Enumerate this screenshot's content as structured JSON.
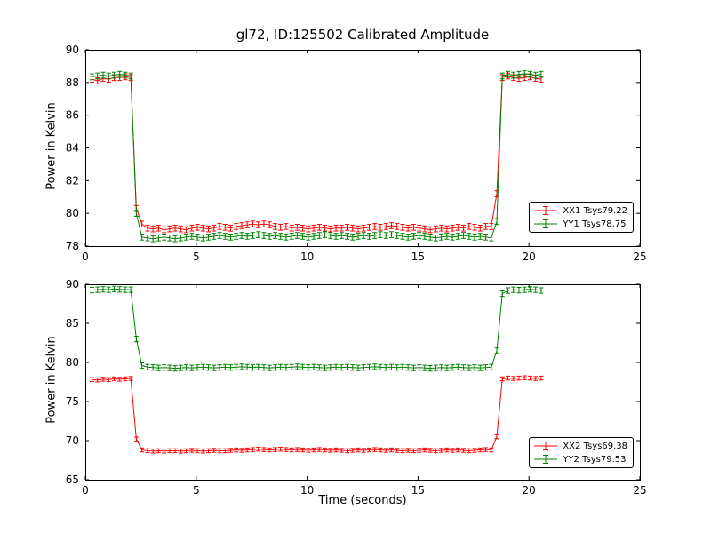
{
  "figure": {
    "title": "gl72, ID:125502 Calibrated Amplitude",
    "background": "#ffffff",
    "text_color": "#000000"
  },
  "chart_data": [
    {
      "type": "line",
      "title": "gl72, ID:125502 Calibrated Amplitude",
      "xlabel": "",
      "ylabel": "Power in Kelvin",
      "xlim": [
        0,
        25
      ],
      "ylim": [
        78,
        90
      ],
      "xticks": [
        0,
        5,
        10,
        15,
        20,
        25
      ],
      "yticks": [
        78,
        80,
        82,
        84,
        86,
        88,
        90
      ],
      "grid": false,
      "legend_position": "lower right",
      "x": [
        0.3,
        0.55,
        0.8,
        1.05,
        1.3,
        1.55,
        1.8,
        2.05,
        2.3,
        2.55,
        2.8,
        3.05,
        3.3,
        3.55,
        3.8,
        4.05,
        4.3,
        4.55,
        4.8,
        5.05,
        5.3,
        5.55,
        5.8,
        6.05,
        6.3,
        6.55,
        6.8,
        7.05,
        7.3,
        7.55,
        7.8,
        8.05,
        8.3,
        8.55,
        8.8,
        9.05,
        9.3,
        9.55,
        9.8,
        10.05,
        10.3,
        10.55,
        10.8,
        11.05,
        11.3,
        11.55,
        11.8,
        12.05,
        12.3,
        12.55,
        12.8,
        13.05,
        13.3,
        13.55,
        13.8,
        14.05,
        14.3,
        14.55,
        14.8,
        15.05,
        15.3,
        15.55,
        15.8,
        16.05,
        16.3,
        16.55,
        16.8,
        17.05,
        17.3,
        17.55,
        17.8,
        18.05,
        18.3,
        18.55,
        18.8,
        19.05,
        19.3,
        19.55,
        19.8,
        20.05,
        20.3,
        20.55
      ],
      "series": [
        {
          "name": "XX1 Tsys79.22",
          "color": "#ff0000",
          "err": 0.18,
          "y": [
            88.2,
            88.1,
            88.25,
            88.2,
            88.3,
            88.3,
            88.35,
            88.3,
            80.3,
            79.35,
            79.1,
            79.05,
            79.1,
            79.0,
            79.05,
            79.1,
            79.05,
            79.0,
            79.1,
            79.15,
            79.1,
            79.05,
            79.1,
            79.2,
            79.15,
            79.1,
            79.2,
            79.25,
            79.3,
            79.35,
            79.3,
            79.35,
            79.3,
            79.2,
            79.15,
            79.2,
            79.1,
            79.15,
            79.1,
            79.05,
            79.1,
            79.15,
            79.1,
            79.05,
            79.1,
            79.1,
            79.15,
            79.1,
            79.05,
            79.1,
            79.15,
            79.2,
            79.15,
            79.2,
            79.25,
            79.2,
            79.15,
            79.1,
            79.15,
            79.1,
            79.05,
            79.0,
            79.05,
            79.1,
            79.05,
            79.1,
            79.15,
            79.1,
            79.2,
            79.15,
            79.1,
            79.2,
            79.2,
            81.2,
            88.3,
            88.4,
            88.3,
            88.25,
            88.3,
            88.35,
            88.25,
            88.2
          ]
        },
        {
          "name": "YY1 Tsys78.75",
          "color": "#008000",
          "err": 0.18,
          "y": [
            88.35,
            88.4,
            88.45,
            88.4,
            88.45,
            88.5,
            88.45,
            88.4,
            80.0,
            78.55,
            78.5,
            78.45,
            78.5,
            78.55,
            78.5,
            78.45,
            78.5,
            78.55,
            78.6,
            78.55,
            78.5,
            78.55,
            78.6,
            78.65,
            78.6,
            78.55,
            78.6,
            78.65,
            78.6,
            78.65,
            78.7,
            78.65,
            78.6,
            78.65,
            78.6,
            78.55,
            78.6,
            78.65,
            78.6,
            78.55,
            78.6,
            78.65,
            78.7,
            78.65,
            78.6,
            78.65,
            78.6,
            78.55,
            78.6,
            78.65,
            78.6,
            78.65,
            78.7,
            78.65,
            78.7,
            78.65,
            78.6,
            78.55,
            78.6,
            78.65,
            78.6,
            78.55,
            78.5,
            78.55,
            78.6,
            78.55,
            78.6,
            78.65,
            78.6,
            78.55,
            78.6,
            78.55,
            78.5,
            79.5,
            88.4,
            88.5,
            88.45,
            88.5,
            88.55,
            88.5,
            88.45,
            88.5
          ]
        }
      ]
    },
    {
      "type": "line",
      "title": "",
      "xlabel": "Time (seconds)",
      "ylabel": "Power in Kelvin",
      "xlim": [
        0,
        25
      ],
      "ylim": [
        65,
        90
      ],
      "xticks": [
        0,
        5,
        10,
        15,
        20,
        25
      ],
      "yticks": [
        65,
        70,
        75,
        80,
        85,
        90
      ],
      "grid": false,
      "legend_position": "lower right",
      "x": [
        0.3,
        0.55,
        0.8,
        1.05,
        1.3,
        1.55,
        1.8,
        2.05,
        2.3,
        2.55,
        2.8,
        3.05,
        3.3,
        3.55,
        3.8,
        4.05,
        4.3,
        4.55,
        4.8,
        5.05,
        5.3,
        5.55,
        5.8,
        6.05,
        6.3,
        6.55,
        6.8,
        7.05,
        7.3,
        7.55,
        7.8,
        8.05,
        8.3,
        8.55,
        8.8,
        9.05,
        9.3,
        9.55,
        9.8,
        10.05,
        10.3,
        10.55,
        10.8,
        11.05,
        11.3,
        11.55,
        11.8,
        12.05,
        12.3,
        12.55,
        12.8,
        13.05,
        13.3,
        13.55,
        13.8,
        14.05,
        14.3,
        14.55,
        14.8,
        15.05,
        15.3,
        15.55,
        15.8,
        16.05,
        16.3,
        16.55,
        16.8,
        17.05,
        17.3,
        17.55,
        17.8,
        18.05,
        18.3,
        18.55,
        18.8,
        19.05,
        19.3,
        19.55,
        19.8,
        20.05,
        20.3,
        20.55
      ],
      "series": [
        {
          "name": "XX2 Tsys69.38",
          "color": "#ff0000",
          "err": 0.25,
          "y": [
            77.8,
            77.75,
            77.85,
            77.8,
            77.9,
            77.85,
            77.9,
            77.95,
            70.2,
            68.8,
            68.7,
            68.65,
            68.7,
            68.65,
            68.7,
            68.7,
            68.65,
            68.7,
            68.75,
            68.7,
            68.65,
            68.7,
            68.75,
            68.7,
            68.7,
            68.75,
            68.8,
            68.75,
            68.8,
            68.85,
            68.9,
            68.85,
            68.8,
            68.85,
            68.9,
            68.85,
            68.8,
            68.85,
            68.8,
            68.75,
            68.8,
            68.85,
            68.8,
            68.75,
            68.8,
            68.75,
            68.7,
            68.75,
            68.8,
            68.75,
            68.8,
            68.85,
            68.8,
            68.75,
            68.8,
            68.75,
            68.7,
            68.75,
            68.7,
            68.75,
            68.8,
            68.75,
            68.7,
            68.75,
            68.8,
            68.75,
            68.8,
            68.75,
            68.7,
            68.75,
            68.8,
            68.85,
            68.8,
            70.5,
            77.9,
            78.0,
            77.95,
            78.0,
            78.05,
            78.0,
            77.95,
            78.0
          ]
        },
        {
          "name": "YY2 Tsys79.53",
          "color": "#008000",
          "err": 0.35,
          "y": [
            89.25,
            89.3,
            89.35,
            89.3,
            89.4,
            89.35,
            89.3,
            89.3,
            83.0,
            79.6,
            79.4,
            79.35,
            79.3,
            79.35,
            79.3,
            79.25,
            79.3,
            79.35,
            79.3,
            79.35,
            79.4,
            79.35,
            79.3,
            79.35,
            79.4,
            79.35,
            79.4,
            79.45,
            79.4,
            79.35,
            79.4,
            79.35,
            79.3,
            79.35,
            79.4,
            79.35,
            79.4,
            79.45,
            79.4,
            79.35,
            79.4,
            79.35,
            79.3,
            79.35,
            79.4,
            79.35,
            79.4,
            79.35,
            79.3,
            79.35,
            79.4,
            79.45,
            79.4,
            79.35,
            79.4,
            79.35,
            79.4,
            79.35,
            79.3,
            79.35,
            79.3,
            79.25,
            79.3,
            79.35,
            79.3,
            79.35,
            79.4,
            79.35,
            79.3,
            79.35,
            79.3,
            79.35,
            79.4,
            81.5,
            88.8,
            89.2,
            89.3,
            89.25,
            89.3,
            89.35,
            89.3,
            89.2
          ]
        }
      ]
    }
  ]
}
